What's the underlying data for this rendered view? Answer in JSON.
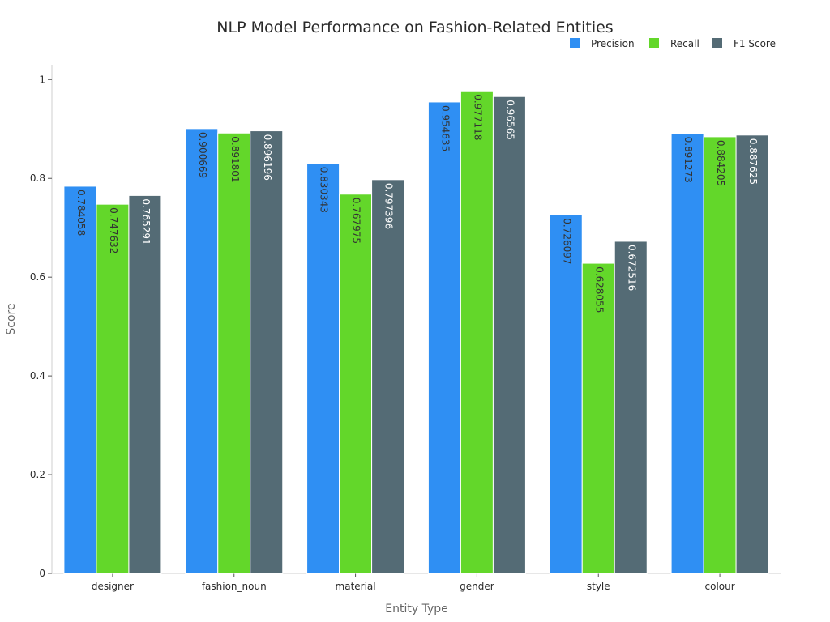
{
  "chart_data": {
    "type": "bar",
    "title": "NLP Model Performance on Fashion-Related Entities",
    "xlabel": "Entity Type",
    "ylabel": "Score",
    "ylim": [
      0,
      1.03
    ],
    "yticks": [
      0,
      0.2,
      0.4,
      0.6,
      0.8,
      1
    ],
    "ytick_labels": [
      "0",
      "0.2",
      "0.4",
      "0.6",
      "0.8",
      "1"
    ],
    "grid": false,
    "legend_position": "top-right",
    "categories": [
      "designer",
      "fashion_noun",
      "material",
      "gender",
      "style",
      "colour"
    ],
    "series": [
      {
        "name": "Precision",
        "color": "#2f8ff3",
        "values": [
          0.784058,
          0.900669,
          0.830343,
          0.954635,
          0.726097,
          0.891273
        ],
        "labels": [
          "0.784058",
          "0.900669",
          "0.830343",
          "0.954635",
          "0.726097",
          "0.891273"
        ],
        "label_color": "#333333"
      },
      {
        "name": "Recall",
        "color": "#63d72a",
        "values": [
          0.747632,
          0.891801,
          0.767975,
          0.977118,
          0.628055,
          0.884205
        ],
        "labels": [
          "0.747632",
          "0.891801",
          "0.767975",
          "0.977118",
          "0.628055",
          "0.884205"
        ],
        "label_color": "#333333"
      },
      {
        "name": "F1 Score",
        "color": "#546b75",
        "values": [
          0.765291,
          0.896196,
          0.797396,
          0.96565,
          0.672516,
          0.887625
        ],
        "labels": [
          "0.765291",
          "0.896196",
          "0.797396",
          "0.96565",
          "0.672516",
          "0.887625"
        ],
        "label_color": "#ffffff"
      }
    ]
  }
}
